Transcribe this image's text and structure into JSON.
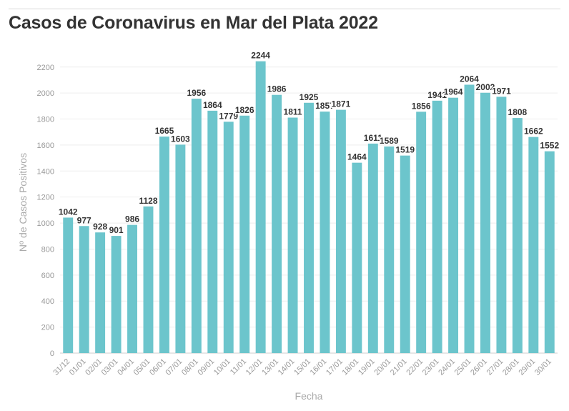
{
  "chart_data": {
    "type": "bar",
    "title": "Casos de Coronavirus en Mar del Plata 2022",
    "xlabel": "Fecha",
    "ylabel": "Nº de Casos Positivos",
    "ylim": [
      0,
      2300
    ],
    "yticks": [
      0,
      200,
      400,
      600,
      800,
      1000,
      1200,
      1400,
      1600,
      1800,
      2000,
      2200
    ],
    "grid": true,
    "bar_color": "#6cc5cc",
    "categories": [
      "31/12",
      "01/01",
      "02/01",
      "03/01",
      "04/01",
      "05/01",
      "06/01",
      "07/01",
      "08/01",
      "09/01",
      "10/01",
      "11/01",
      "12/01",
      "13/01",
      "14/01",
      "15/01",
      "16/01",
      "17/01",
      "18/01",
      "19/01",
      "20/01",
      "21/01",
      "22/01",
      "23/01",
      "24/01",
      "25/01",
      "26/01",
      "27/01",
      "28/01",
      "29/01",
      "30/01"
    ],
    "values": [
      1042,
      977,
      928,
      901,
      986,
      1128,
      1665,
      1603,
      1956,
      1864,
      1779,
      1826,
      2244,
      1986,
      1811,
      1925,
      1857,
      1871,
      1464,
      1611,
      1589,
      1519,
      1856,
      1941,
      1964,
      2064,
      2002,
      1971,
      1808,
      1662,
      1552
    ]
  }
}
